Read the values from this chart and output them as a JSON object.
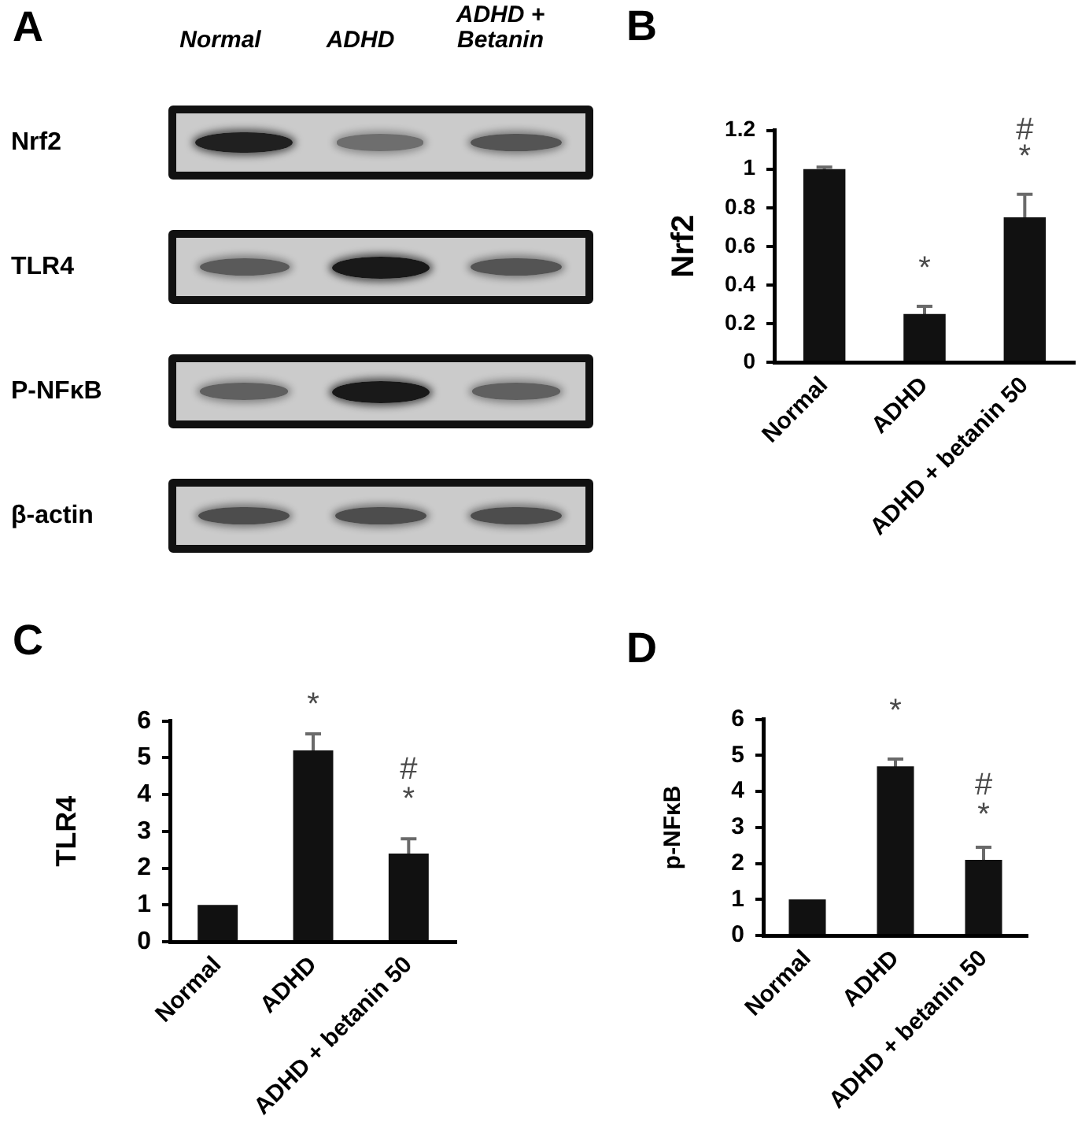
{
  "chart_data": [
    {
      "type": "other",
      "title": "A",
      "categories": [
        "Normal",
        "ADHD",
        "ADHD + Betanin"
      ],
      "y_categories": [
        "Nrf2",
        "TLR4",
        "P-NFκB",
        "β-actin"
      ]
    },
    {
      "type": "bar",
      "title": "B",
      "ylabel": "Nrf2",
      "categories": [
        "Normal",
        "ADHD",
        "ADHD + betanin 50"
      ],
      "values": [
        1,
        0.25,
        0.75
      ],
      "errors": [
        0.01,
        0.04,
        0.12
      ],
      "color": "#111111",
      "ylim": [
        0,
        1.2
      ],
      "yticks": [
        0,
        0.2,
        0.4,
        0.6,
        0.8,
        1,
        1.2
      ],
      "annotations": [
        "*",
        "#",
        "*"
      ]
    },
    {
      "type": "bar",
      "title": "C",
      "ylabel": "TLR4",
      "categories": [
        "Normal",
        "ADHD",
        "ADHD + betanin 50"
      ],
      "values": [
        1,
        5.2,
        2.4
      ],
      "errors": [
        null,
        0.45,
        0.4
      ],
      "color": "#111111",
      "ylim": [
        0,
        6
      ],
      "yticks": [
        0,
        1,
        2,
        3,
        4,
        5,
        6
      ],
      "annotations": [
        "*",
        "#",
        "*"
      ]
    },
    {
      "type": "bar",
      "title": "D",
      "ylabel": "p-NFκB",
      "categories": [
        "Normal",
        "ADHD",
        "ADHD + betanin 50"
      ],
      "values": [
        1,
        4.7,
        2.1
      ],
      "errors": [
        null,
        0.2,
        0.35
      ],
      "color": "#111111",
      "ylim": [
        0,
        6
      ],
      "yticks": [
        0,
        1,
        2,
        3,
        4,
        5,
        6
      ],
      "annotations": [
        "*",
        "#",
        "*"
      ]
    }
  ]
}
